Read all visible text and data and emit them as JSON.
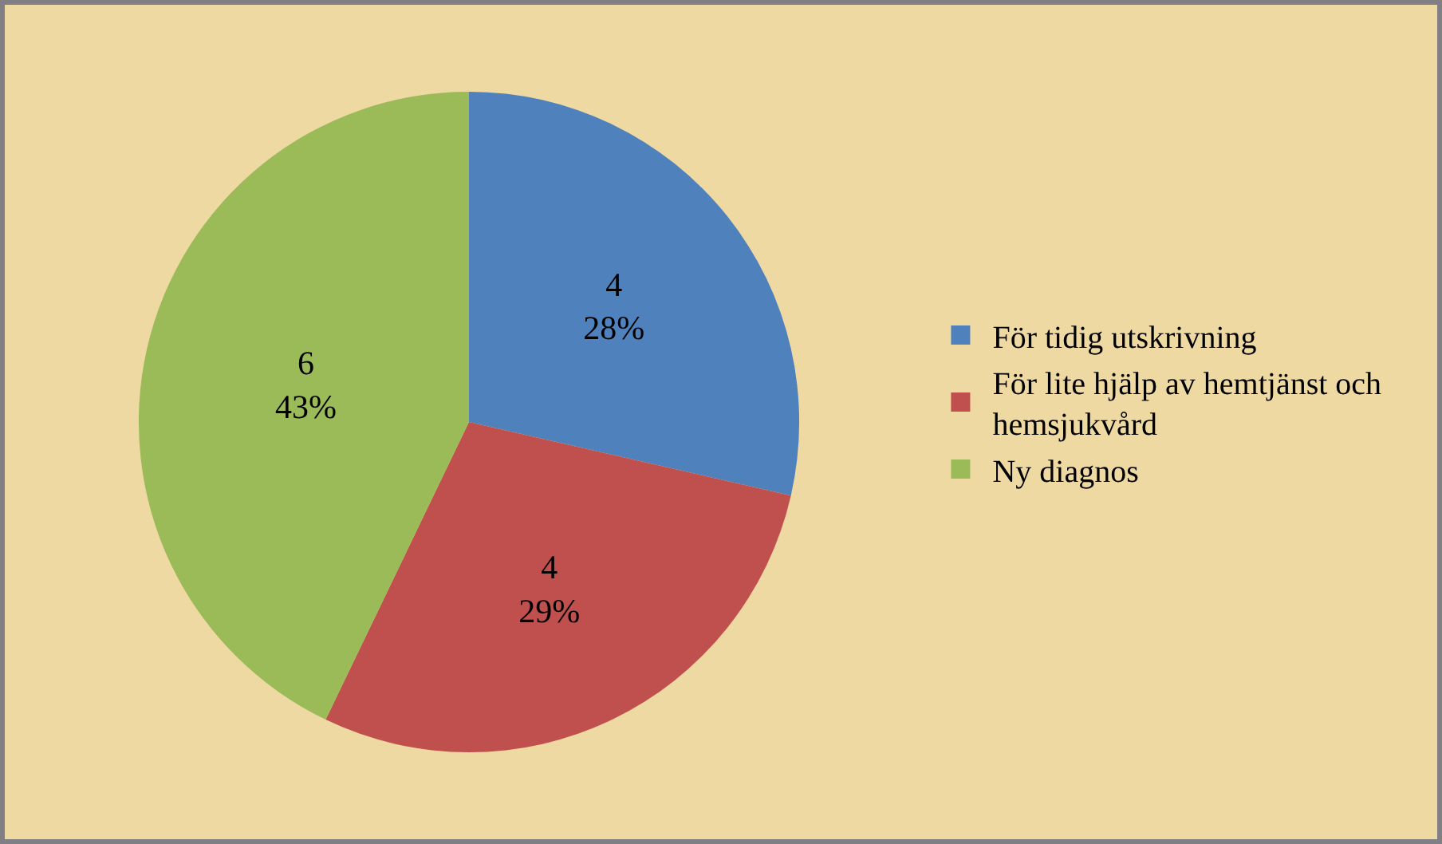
{
  "chart_data": {
    "type": "pie",
    "categories": [
      "För tidig utskrivning",
      "För lite hjälp av hemtjänst och hemsjukvård",
      "Ny diagnos"
    ],
    "values": [
      4,
      4,
      6
    ],
    "colors": [
      "#4f81bd",
      "#c0504d",
      "#9bbb59"
    ],
    "value_labels": [
      "4\n28%",
      "4\n29%",
      "6\n43%"
    ],
    "legend": "right"
  }
}
